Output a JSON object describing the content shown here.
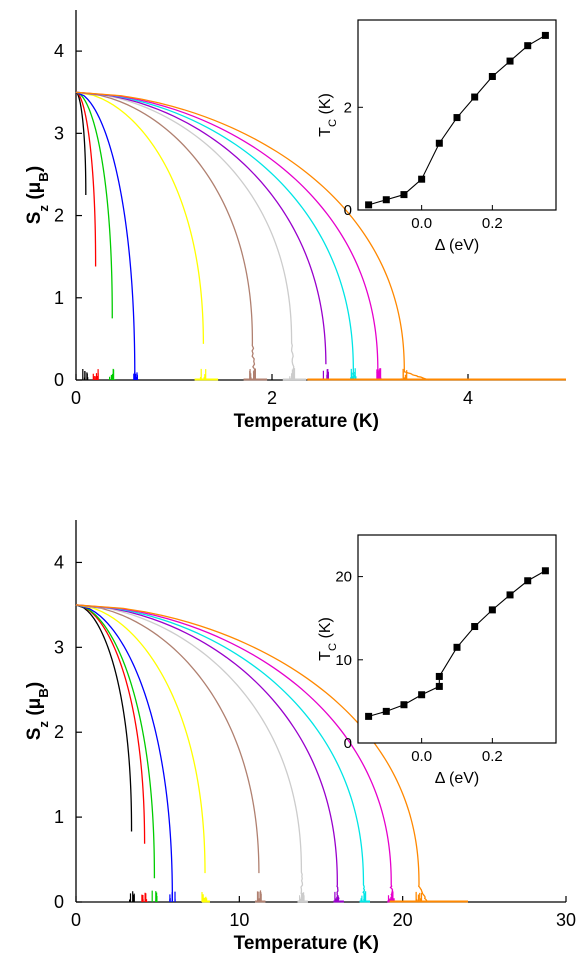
{
  "chart_data": [
    {
      "type": "line",
      "panel": "top",
      "xlabel": "Temperature (K)",
      "ylabel": "S_z (μ_B)",
      "xlim": [
        0,
        5
      ],
      "ylim": [
        0,
        4.5
      ],
      "xticks": [
        0,
        2,
        4
      ],
      "yticks": [
        0,
        1,
        2,
        3,
        4
      ],
      "saturation": 3.5,
      "curves": [
        {
          "color": "#000000",
          "tc": 0.1,
          "low_T": 2.25,
          "curve_bottom": 2.25,
          "tail_end": 0.1
        },
        {
          "color": "#ff0000",
          "tc": 0.2,
          "low_T": 1.38,
          "curve_bottom": 1.38,
          "tail_end": 0.2
        },
        {
          "color": "#00cc00",
          "tc": 0.37,
          "low_T": 0.75,
          "curve_bottom": 0.75,
          "tail_end": 0.37
        },
        {
          "color": "#0000ff",
          "tc": 0.6,
          "low_T": 0.0,
          "curve_bottom": 0.0,
          "tail_end": 0.6
        },
        {
          "color": "#ffff00",
          "tc": 1.3,
          "low_T": 0.0,
          "curve_bottom": 0.4,
          "tail_end": 1.45
        },
        {
          "color": "#b08070",
          "tc": 1.8,
          "low_T": 0.0,
          "curve_bottom": 0.45,
          "tail_end": 1.95
        },
        {
          "color": "#cccccc",
          "tc": 2.2,
          "low_T": 0.0,
          "curve_bottom": 0.45,
          "tail_end": 2.35
        },
        {
          "color": "#9900cc",
          "tc": 2.55,
          "low_T": 0.0,
          "curve_bottom": 0.15,
          "tail_end": 2.7
        },
        {
          "color": "#00e5e5",
          "tc": 2.83,
          "low_T": 0.0,
          "curve_bottom": 0.1,
          "tail_end": 3.0
        },
        {
          "color": "#e600cc",
          "tc": 3.08,
          "low_T": 0.0,
          "curve_bottom": 0.1,
          "tail_end": 3.25
        },
        {
          "color": "#ff8800",
          "tc": 3.35,
          "low_T": 0.0,
          "curve_bottom": 0.1,
          "tail_end": 5.0
        }
      ],
      "inset": {
        "type": "line",
        "xlabel": "Δ (eV)",
        "ylabel": "T_C (K)",
        "xlim": [
          -0.18,
          0.38
        ],
        "ylim": [
          0,
          3.7
        ],
        "xticks": [
          0.0,
          0.2
        ],
        "xtick_labels": [
          "0.0",
          "0.2"
        ],
        "yticks": [
          0,
          2
        ],
        "x": [
          -0.15,
          -0.1,
          -0.05,
          0.0,
          0.05,
          0.1,
          0.15,
          0.2,
          0.25,
          0.3,
          0.35
        ],
        "y": [
          0.1,
          0.2,
          0.3,
          0.6,
          1.3,
          1.8,
          2.2,
          2.6,
          2.9,
          3.2,
          3.4
        ]
      }
    },
    {
      "type": "line",
      "panel": "bottom",
      "xlabel": "Temperature (K)",
      "ylabel": "S_z (μ_B)",
      "xlim": [
        0,
        30
      ],
      "ylim": [
        0,
        4.5
      ],
      "xticks": [
        0,
        10,
        20,
        30
      ],
      "yticks": [
        0,
        1,
        2,
        3,
        4
      ],
      "saturation": 3.5,
      "curves": [
        {
          "color": "#000000",
          "tc": 3.4,
          "low_T": 0.83,
          "curve_bottom": 0.83,
          "tail_end": 3.4
        },
        {
          "color": "#ff0000",
          "tc": 4.2,
          "low_T": 0.65,
          "curve_bottom": 0.65,
          "tail_end": 4.2
        },
        {
          "color": "#00cc00",
          "tc": 4.8,
          "low_T": 0.28,
          "curve_bottom": 0.28,
          "tail_end": 4.8
        },
        {
          "color": "#0000ff",
          "tc": 5.9,
          "low_T": 0.0,
          "curve_bottom": 0.0,
          "tail_end": 5.9
        },
        {
          "color": "#ffff00",
          "tc": 7.9,
          "low_T": 0.0,
          "curve_bottom": 0.3,
          "tail_end": 8.2
        },
        {
          "color": "#b08070",
          "tc": 11.2,
          "low_T": 0.0,
          "curve_bottom": 0.3,
          "tail_end": 11.6
        },
        {
          "color": "#cccccc",
          "tc": 13.8,
          "low_T": 0.0,
          "curve_bottom": 0.35,
          "tail_end": 14.2
        },
        {
          "color": "#9900cc",
          "tc": 16.0,
          "low_T": 0.0,
          "curve_bottom": 0.2,
          "tail_end": 16.4
        },
        {
          "color": "#00e5e5",
          "tc": 17.6,
          "low_T": 0.0,
          "curve_bottom": 0.2,
          "tail_end": 18.0
        },
        {
          "color": "#e600cc",
          "tc": 19.3,
          "low_T": 0.0,
          "curve_bottom": 0.2,
          "tail_end": 19.7
        },
        {
          "color": "#ff8800",
          "tc": 21.0,
          "low_T": 0.0,
          "curve_bottom": 0.2,
          "tail_end": 24.0
        }
      ],
      "inset": {
        "type": "line",
        "xlabel": "Δ (eV)",
        "ylabel": "T_C (K)",
        "xlim": [
          -0.18,
          0.38
        ],
        "ylim": [
          0,
          25
        ],
        "xticks": [
          0.0,
          0.2
        ],
        "xtick_labels": [
          "0.0",
          "0.2"
        ],
        "yticks": [
          0,
          10,
          20
        ],
        "x": [
          -0.15,
          -0.1,
          -0.05,
          0.0,
          0.05,
          0.05,
          0.1,
          0.15,
          0.2,
          0.25,
          0.3,
          0.35
        ],
        "y": [
          3.2,
          3.8,
          4.6,
          5.8,
          6.8,
          8.0,
          11.5,
          14.0,
          16.0,
          17.8,
          19.5,
          20.7
        ]
      }
    }
  ]
}
